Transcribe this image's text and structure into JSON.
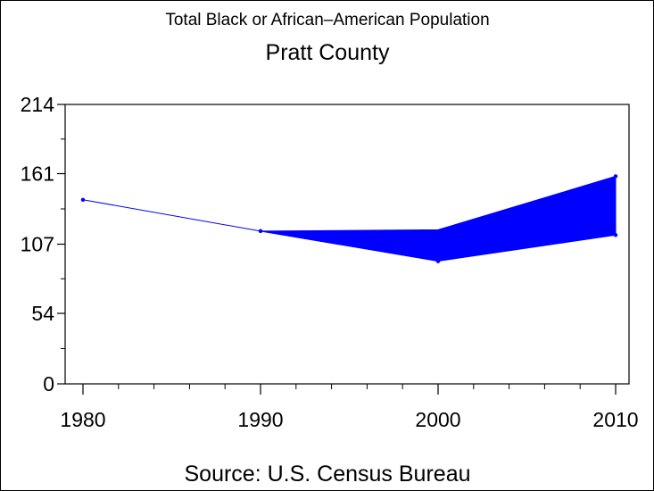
{
  "chart_data": {
    "type": "line",
    "title": "Total Black or African–American Population",
    "subtitle": "Pratt County",
    "footnote": "Source: U.S. Census Bureau",
    "x": [
      1980,
      1990,
      2000,
      2010
    ],
    "x_tick_labels": [
      "1980",
      "1990",
      "2000",
      "2010"
    ],
    "y_tick_labels": [
      "0",
      "54",
      "107",
      "161",
      "214"
    ],
    "y_ticks": [
      0,
      54,
      107,
      161,
      214
    ],
    "ylim": [
      0,
      214
    ],
    "xlim": [
      1980,
      2010
    ],
    "series": [
      {
        "values": [
          141,
          117,
          94,
          159
        ]
      }
    ],
    "band": {
      "x": [
        1990,
        2000,
        2010
      ],
      "upper": [
        117,
        118,
        159
      ],
      "lower": [
        117,
        94,
        114
      ]
    },
    "colors": {
      "line": "#0000ff",
      "band": "#0000ff",
      "axis": "#000000"
    },
    "grid": false,
    "legend": "none"
  }
}
